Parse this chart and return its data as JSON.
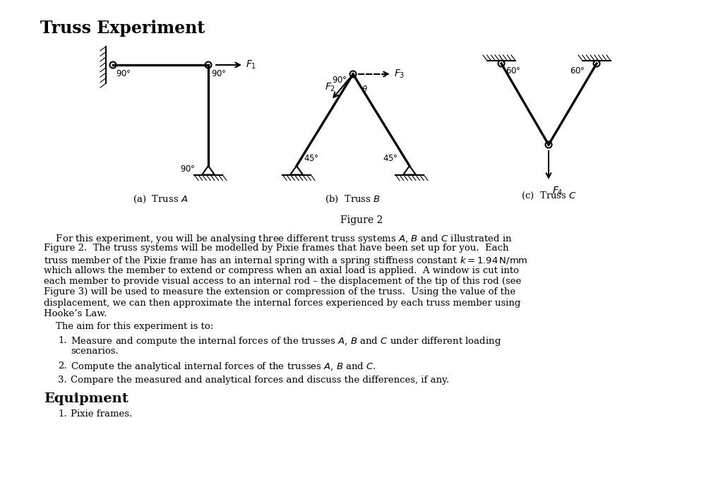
{
  "bg_color": "#ffffff",
  "text_color": "#000000",
  "title": "Truss Experiment",
  "subfig_a": "(a)  Truss $A$",
  "subfig_b": "(b)  Truss $B$",
  "subfig_c": "(c)  Truss $C$",
  "fig_caption": "Figure 2",
  "body_lines": [
    "    For this experiment, you will be analysing three different truss systems $A$, $B$ and $C$ illustrated in",
    "Figure 2.  The truss systems will be modelled by Pixie frames that have been set up for you.  Each",
    "truss member of the Pixie frame has an internal spring with a spring stiffness constant $k = 1.94\\,\\mathrm{N/mm}$",
    "which allows the member to extend or compress when an axial load is applied.  A window is cut into",
    "each member to provide visual access to an internal rod – the displacement of the tip of this rod (see",
    "Figure 3) will be used to measure the extension or compression of the truss.  Using the value of the",
    "displacement, we can then approximate the internal forces experienced by each truss member using",
    "Hooke’s Law."
  ],
  "aim_intro": "    The aim for this experiment is to:",
  "aim_items": [
    "Measure and compute the internal forces of the trusses $A$, $B$ and $C$ under different loading\n        scenarios.",
    "Compute the analytical internal forces of the trusses $A$, $B$ and $C$.",
    "Compare the measured and analytical forces and discuss the differences, if any."
  ],
  "equip_title": "Equipment",
  "equip_items": [
    "Pixie frames."
  ]
}
